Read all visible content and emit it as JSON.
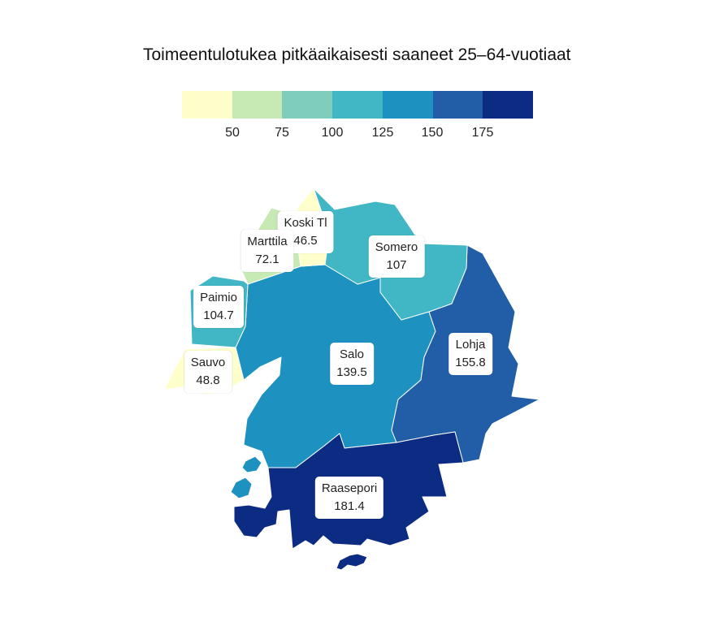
{
  "title": "Toimeentulotukea pitkäaikaisesti saaneet 25–64-vuotiaat",
  "legend": {
    "colors": [
      "#ffffcc",
      "#c7e9b4",
      "#7fcdbb",
      "#41b6c4",
      "#1d91c0",
      "#225ea8",
      "#0c2c84"
    ],
    "ticks": [
      "50",
      "75",
      "100",
      "125",
      "150",
      "175"
    ]
  },
  "regions": [
    {
      "name": "Koski Tl",
      "value": "46.5",
      "color": "#ffffcc"
    },
    {
      "name": "Marttila",
      "value": "72.1",
      "color": "#c7e9b4"
    },
    {
      "name": "Somero",
      "value": "107",
      "color": "#41b6c4"
    },
    {
      "name": "Paimio",
      "value": "104.7",
      "color": "#41b6c4"
    },
    {
      "name": "Sauvo",
      "value": "48.8",
      "color": "#ffffcc"
    },
    {
      "name": "Salo",
      "value": "139.5",
      "color": "#1d91c0"
    },
    {
      "name": "Lohja",
      "value": "155.8",
      "color": "#225ea8"
    },
    {
      "name": "Raasepori",
      "value": "181.4",
      "color": "#0c2c84"
    }
  ]
}
